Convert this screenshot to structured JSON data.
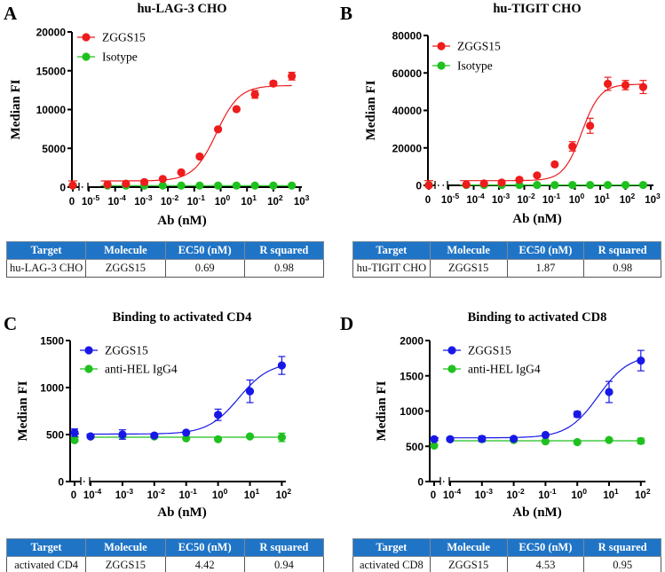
{
  "colors": {
    "ZGGS15_red": "#ee1c1c",
    "isotype_green": "#1fc11f",
    "ZGGS15_blue": "#1818e6",
    "table_header": "#1f74c6"
  },
  "table_headers": [
    "Target",
    "Molecule",
    "EC50 (nM)",
    "R squared"
  ],
  "chart_data": [
    {
      "panel": "A",
      "type": "scatter",
      "title": "hu-LAG-3 CHO",
      "xlabel": "Ab (nM)",
      "ylabel": "Median FI",
      "xscale": "log with 0 break",
      "xticks": [
        "0",
        "10-5",
        "10-4",
        "10-3",
        "10-2",
        "10-1",
        "100",
        "101",
        "102",
        "103"
      ],
      "yticks": [
        "0",
        "5000",
        "10000",
        "15000",
        "20000"
      ],
      "ylim": [
        0,
        20000
      ],
      "x": [
        0,
        5.12e-05,
        0.000256,
        0.00128,
        0.0064,
        0.032,
        0.16,
        0.8,
        4,
        20,
        100,
        500
      ],
      "series": [
        {
          "name": "ZGGS15",
          "color": "#ee1c1c",
          "values": [
            230,
            350,
            450,
            650,
            1050,
            1900,
            3950,
            7450,
            10050,
            11950,
            13350,
            14300
          ],
          "errors": [
            0,
            0,
            0,
            0,
            0,
            0,
            0,
            0,
            0,
            500,
            300,
            500
          ],
          "fit": {
            "bottom": 800,
            "top": 13100,
            "ec50": 0.69,
            "hill": 1.0
          }
        },
        {
          "name": "Isotype",
          "color": "#1fc11f",
          "values": [
            200,
            200,
            200,
            200,
            200,
            200,
            200,
            200,
            200,
            200,
            200,
            200
          ],
          "errors": [
            0,
            0,
            0,
            0,
            0,
            0,
            0,
            0,
            0,
            0,
            0,
            0
          ],
          "fit": {
            "flat": 200
          }
        }
      ],
      "table": {
        "target": "hu-LAG-3 CHO",
        "molecule": "ZGGS15",
        "ec50": "0.69",
        "r_squared": "0.98"
      }
    },
    {
      "panel": "B",
      "type": "scatter",
      "title": "hu-TIGIT CHO",
      "xlabel": "Ab (nM)",
      "ylabel": "Median FI",
      "xscale": "log with 0 break",
      "xticks": [
        "0",
        "10-5",
        "10-4",
        "10-3",
        "10-2",
        "10-1",
        "100",
        "101",
        "102",
        "103"
      ],
      "yticks": [
        "0",
        "20000",
        "40000",
        "60000",
        "80000"
      ],
      "ylim": [
        0,
        80000
      ],
      "x": [
        0,
        5.12e-05,
        0.000256,
        0.00128,
        0.0064,
        0.032,
        0.16,
        0.8,
        4,
        20,
        100,
        500
      ],
      "series": [
        {
          "name": "ZGGS15",
          "color": "#ee1c1c",
          "values": [
            0,
            500,
            1000,
            1500,
            3000,
            5300,
            11200,
            20800,
            31800,
            54200,
            53500,
            52500
          ],
          "errors": [
            0,
            0,
            0,
            0,
            0,
            0,
            0,
            2500,
            4000,
            3500,
            2500,
            3500
          ],
          "fit": {
            "bottom": 2500,
            "top": 54000,
            "ec50": 1.87,
            "hill": 1.2
          }
        },
        {
          "name": "Isotype",
          "color": "#1fc11f",
          "values": [
            200,
            200,
            200,
            200,
            200,
            200,
            200,
            200,
            200,
            200,
            200,
            200
          ],
          "errors": [
            0,
            0,
            0,
            0,
            0,
            0,
            0,
            0,
            0,
            0,
            0,
            0
          ],
          "fit": {
            "flat": 200
          }
        }
      ],
      "table": {
        "target": "hu-TIGIT CHO",
        "molecule": "ZGGS15",
        "ec50": "1.87",
        "r_squared": "0.98"
      }
    },
    {
      "panel": "C",
      "type": "scatter",
      "title": "Binding to activated CD4",
      "xlabel": "Ab  (nM)",
      "ylabel": "Median FI",
      "xscale": "log with 0 break",
      "xticks": [
        "0",
        "10-4",
        "10-3",
        "10-2",
        "10-1",
        "100",
        "101",
        "102"
      ],
      "yticks": [
        "0",
        "500",
        "1000",
        "1500"
      ],
      "ylim": [
        0,
        1500
      ],
      "x": [
        0,
        0.0001,
        0.001,
        0.01,
        0.1,
        1,
        10,
        100
      ],
      "series": [
        {
          "name": "ZGGS15",
          "color": "#1818e6",
          "values": [
            520,
            480,
            500,
            490,
            520,
            710,
            960,
            1235
          ],
          "errors": [
            40,
            0,
            50,
            0,
            0,
            60,
            120,
            95
          ],
          "fit": {
            "bottom": 505,
            "top": 1270,
            "ec50": 4.42,
            "hill": 0.9
          }
        },
        {
          "name": "anti-HEL IgG4",
          "color": "#1fc11f",
          "values": [
            440,
            480,
            490,
            480,
            460,
            450,
            480,
            470
          ],
          "errors": [
            0,
            0,
            0,
            0,
            0,
            0,
            0,
            45
          ],
          "fit": {
            "flat": 472
          }
        }
      ],
      "table": {
        "target": "activated CD4",
        "molecule": "ZGGS15",
        "ec50": "4.42",
        "r_squared": "0.94"
      }
    },
    {
      "panel": "D",
      "type": "scatter",
      "title": "Binding to activated CD8",
      "xlabel": "Ab (nM)",
      "ylabel": "Median FI",
      "xscale": "log with 0 break",
      "xticks": [
        "0",
        "10-4",
        "10-3",
        "10-2",
        "10-1",
        "100",
        "101",
        "102"
      ],
      "yticks": [
        "0",
        "500",
        "1000",
        "1500",
        "2000"
      ],
      "ylim": [
        0,
        2000
      ],
      "x": [
        0,
        0.0001,
        0.001,
        0.01,
        0.1,
        1,
        10,
        100
      ],
      "series": [
        {
          "name": "ZGGS15",
          "color": "#1818e6",
          "values": [
            600,
            600,
            605,
            605,
            660,
            955,
            1270,
            1715
          ],
          "errors": [
            0,
            0,
            40,
            0,
            0,
            40,
            150,
            145
          ],
          "fit": {
            "bottom": 620,
            "top": 1800,
            "ec50": 4.53,
            "hill": 0.9
          }
        },
        {
          "name": "anti-HEL IgG4",
          "color": "#1fc11f",
          "values": [
            510,
            600,
            600,
            590,
            570,
            560,
            590,
            575
          ],
          "errors": [
            0,
            0,
            0,
            0,
            0,
            0,
            0,
            40
          ],
          "fit": {
            "flat": 578
          }
        }
      ],
      "table": {
        "target": "activated CD8",
        "molecule": "ZGGS15",
        "ec50": "4.53",
        "r_squared": "0.95"
      }
    }
  ]
}
